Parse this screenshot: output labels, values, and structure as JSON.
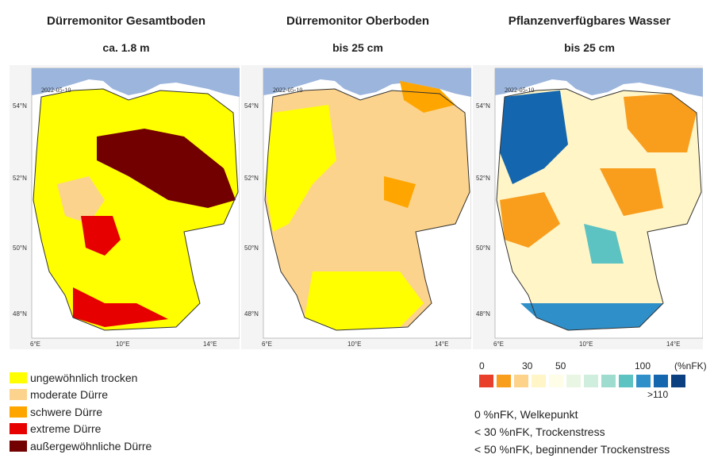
{
  "panels": [
    {
      "title": "Dürremonitor Gesamtboden",
      "subtitle": "ca. 1.8 m",
      "date": "2022-05-10"
    },
    {
      "title": "Dürremonitor Oberboden",
      "subtitle": "bis 25 cm",
      "date": "2022-05-10"
    },
    {
      "title": "Pflanzenverfügbares Wasser",
      "subtitle": "bis 25 cm",
      "date": "2022-05-10"
    }
  ],
  "axes": {
    "lat_labels": [
      "54°N",
      "52°N",
      "50°N",
      "48°N"
    ],
    "lon_labels": [
      "6°E",
      "10°E",
      "14°E"
    ]
  },
  "drought_legend": [
    {
      "label": "ungewöhnlich trocken",
      "color": "#ffff00"
    },
    {
      "label": "moderate Dürre",
      "color": "#fcd38d"
    },
    {
      "label": "schwere Dürre",
      "color": "#ffa500"
    },
    {
      "label": "extreme Dürre",
      "color": "#e60000"
    },
    {
      "label": "außergewöhnliche Dürre",
      "color": "#730000"
    }
  ],
  "nfk_scale": {
    "ticks": [
      "0",
      "30",
      "50",
      "100",
      "(%nFK)"
    ],
    "overflow_label": ">110",
    "colors": [
      "#e8402a",
      "#f99d1c",
      "#fdd38a",
      "#fff5c7",
      "#fdfde8",
      "#eaf6e4",
      "#cfeedd",
      "#9ddccf",
      "#5cc2c2",
      "#2e8fc9",
      "#1466ae",
      "#0b3f80"
    ]
  },
  "notes": [
    "0 %nFK, Welkepunkt",
    "< 30 %nFK, Trockenstress",
    "< 50 %nFK, beginnender Trockenstress"
  ],
  "map_colors": {
    "sea": "#9bb5dd",
    "land_bg": "#ffffff",
    "border": "#333333"
  }
}
